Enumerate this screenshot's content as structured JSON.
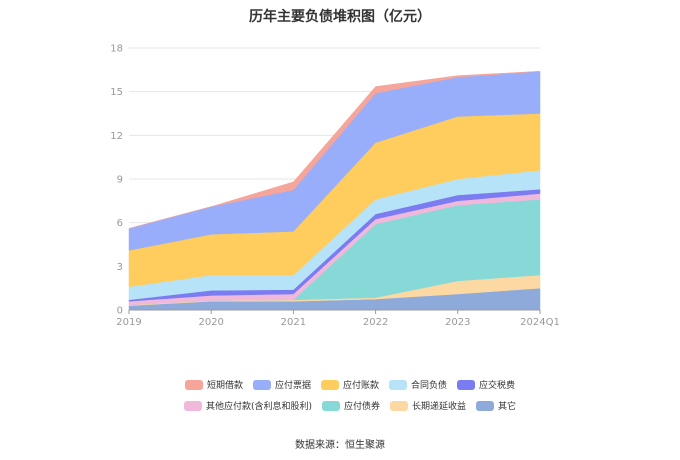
{
  "chart_data": {
    "type": "area",
    "stacked": true,
    "title": "历年主要负债堆积图（亿元）",
    "categories": [
      "2019",
      "2020",
      "2021",
      "2022",
      "2023",
      "2024Q1"
    ],
    "ylim": [
      0,
      18
    ],
    "yticks": [
      0,
      3,
      6,
      9,
      12,
      15,
      18
    ],
    "grid": true,
    "legend_position": "bottom",
    "series": [
      {
        "name": "其它",
        "color": "#8eaadb",
        "values": [
          0.3,
          0.6,
          0.6,
          0.75,
          1.1,
          1.5
        ]
      },
      {
        "name": "长期递延收益",
        "color": "#fcd9a3",
        "values": [
          0.05,
          0.05,
          0.1,
          0.1,
          0.9,
          0.9
        ]
      },
      {
        "name": "应付债券",
        "color": "#86d9d7",
        "values": [
          0,
          0,
          0,
          5.05,
          5.2,
          5.2
        ]
      },
      {
        "name": "其他应付款(含利息和股利)",
        "color": "#f0b8db",
        "values": [
          0.25,
          0.35,
          0.4,
          0.35,
          0.3,
          0.4
        ]
      },
      {
        "name": "应交税费",
        "color": "#7b7cf2",
        "values": [
          0.1,
          0.35,
          0.3,
          0.35,
          0.4,
          0.3
        ]
      },
      {
        "name": "合同负债",
        "color": "#b6e3f7",
        "values": [
          0.9,
          1.05,
          1.0,
          1.0,
          1.1,
          1.3
        ]
      },
      {
        "name": "应付账款",
        "color": "#fecd5e",
        "values": [
          2.5,
          2.8,
          3.0,
          3.9,
          4.3,
          3.9
        ]
      },
      {
        "name": "应付票据",
        "color": "#98aefa",
        "values": [
          1.5,
          1.9,
          2.85,
          3.4,
          2.7,
          2.9
        ]
      },
      {
        "name": "短期借款",
        "color": "#f5a59a",
        "values": [
          0,
          0,
          0.55,
          0.45,
          0.1,
          0
        ]
      }
    ]
  },
  "legend_rows": [
    [
      "短期借款",
      "应付票据",
      "应付账款",
      "合同负债",
      "应交税费"
    ],
    [
      "其他应付款(含利息和股利)",
      "应付债券",
      "长期递延收益",
      "其它"
    ]
  ],
  "source": "数据来源：恒生聚源",
  "colors": {
    "grid": "#e6e6e6",
    "axis": "#999999",
    "tick_text": "#999999"
  }
}
